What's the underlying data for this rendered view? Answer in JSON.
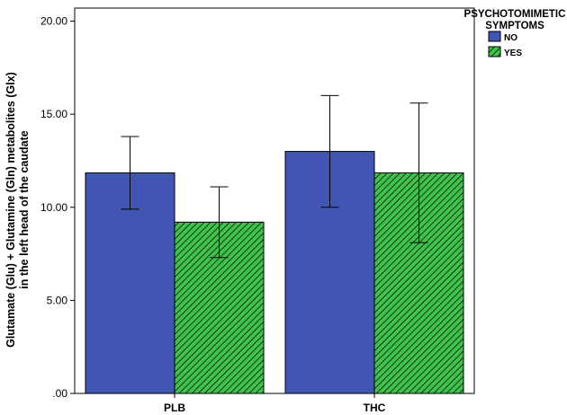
{
  "chart_data": {
    "type": "bar",
    "categories": [
      "PLB",
      "THC"
    ],
    "series": [
      {
        "name": "NO",
        "values": [
          11.85,
          13.0
        ],
        "error_low": [
          9.9,
          10.0
        ],
        "error_high": [
          13.8,
          16.0
        ],
        "color": "#4056b2",
        "pattern": "solid"
      },
      {
        "name": "YES",
        "values": [
          9.2,
          11.85
        ],
        "error_low": [
          7.3,
          8.1
        ],
        "error_high": [
          11.1,
          15.6
        ],
        "color": "#3ec44a",
        "pattern": "diagonal-hatch"
      }
    ],
    "ylabel": "Glutamate (Glu) + Glutamine (Gln) metabolites (Glx) in the left head of the caudate",
    "ylabel_lines": [
      "Glutamate (Glu) + Glutamine (Gln) metabolites (Glx)",
      "in the left head of the caudate"
    ],
    "yticks": [
      0,
      5,
      10,
      15,
      20
    ],
    "ytick_labels": [
      ".00",
      "5.00",
      "10.00",
      "15.00",
      "20.00"
    ],
    "ylim": [
      0,
      20.7
    ],
    "legend": {
      "title_lines": [
        "PSYCHOTOMIMETIC",
        "SYMPTOMS"
      ],
      "placement": "right"
    },
    "grid": false
  }
}
